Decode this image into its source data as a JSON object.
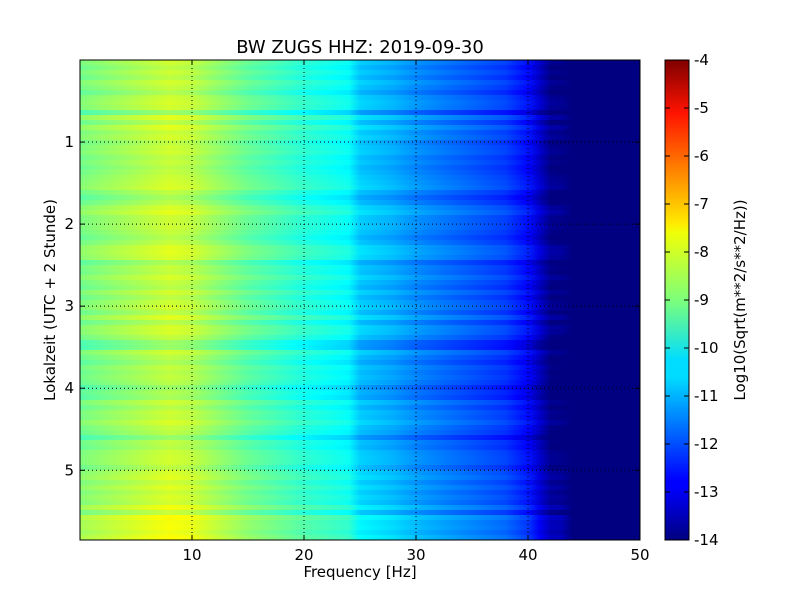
{
  "chart_data": {
    "type": "heatmap",
    "title": "BW ZUGS HHZ: 2019-09-30",
    "xlabel": "Frequency [Hz]",
    "ylabel": "Lokalzeit (UTC + 2 Stunde)",
    "xlim": [
      0,
      50
    ],
    "ylim": [
      5.85,
      0
    ],
    "x_ticks": [
      "10",
      "20",
      "30",
      "40",
      "50"
    ],
    "y_ticks": [
      "1",
      "2",
      "3",
      "4",
      "5"
    ],
    "grid": true,
    "colormap": "jet",
    "colorbar": {
      "label": "Log10(Sqrt(m**2/s**2/Hz))",
      "range": [
        -14,
        -4
      ],
      "ticks": [
        "-4",
        "-5",
        "-6",
        "-7",
        "-8",
        "-9",
        "-10",
        "-11",
        "-12",
        "-13",
        "-14"
      ]
    },
    "spectrum_profile": {
      "frequency_hz": [
        0,
        5,
        8,
        10,
        12,
        15,
        20,
        24.5,
        25,
        28,
        30,
        33,
        35,
        38,
        40,
        42,
        45,
        50
      ],
      "log10_amplitude": [
        -9.0,
        -8.5,
        -8.2,
        -8.35,
        -8.7,
        -9.2,
        -9.8,
        -10.2,
        -10.7,
        -11.0,
        -11.3,
        -11.6,
        -11.8,
        -12.1,
        -12.6,
        -13.8,
        -14.0,
        -14.0
      ]
    }
  }
}
